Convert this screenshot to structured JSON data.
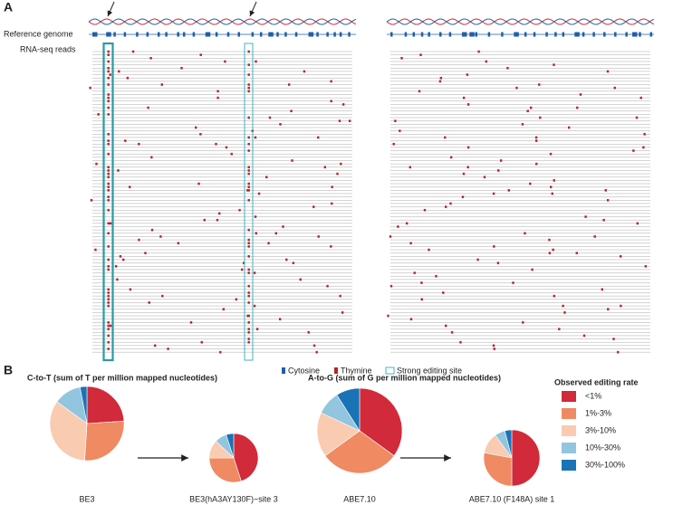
{
  "panel_a": {
    "label": "A",
    "reference_genome": "Reference genome",
    "reads": "RNA-seq reads",
    "legend": [
      {
        "name": "Cytosine",
        "color": "#1f5fa8"
      },
      {
        "name": "Thymine",
        "color": "#b5232e"
      },
      {
        "name": "Strong editing site",
        "color": "#3fb6c0"
      }
    ]
  },
  "panel_b": {
    "label": "B",
    "legend_title": "Observed editing rate"
  },
  "chart_data": [
    {
      "type": "pie",
      "title": "C-to-T (sum of T per million mapped nucleotides)",
      "name": "BE3",
      "categories": [
        "<1%",
        "1%-3%",
        "3%-10%",
        "10%-30%",
        "30%-100%"
      ],
      "colors": [
        "#d12a3a",
        "#ef8a62",
        "#f9cbb1",
        "#92c5de",
        "#1a73b5"
      ],
      "values": [
        24,
        27,
        34,
        12,
        3
      ]
    },
    {
      "type": "pie",
      "name": "BE3(hA3AY130F)−site 3",
      "categories": [
        "<1%",
        "1%-3%",
        "3%-10%",
        "10%-30%",
        "30%-100%"
      ],
      "colors": [
        "#d12a3a",
        "#ef8a62",
        "#f9cbb1",
        "#92c5de",
        "#1a73b5"
      ],
      "values": [
        45,
        30,
        12,
        8,
        5
      ]
    },
    {
      "type": "pie",
      "title": "A-to-G (sum of G per million mapped nucleotides)",
      "name": "ABE7.10",
      "categories": [
        "<1%",
        "1%-3%",
        "3%-10%",
        "10%-30%",
        "30%-100%"
      ],
      "colors": [
        "#d12a3a",
        "#ef8a62",
        "#f9cbb1",
        "#92c5de",
        "#1a73b5"
      ],
      "values": [
        35,
        30,
        17,
        9,
        9
      ]
    },
    {
      "type": "pie",
      "name": "ABE7.10 (F148A) site 1",
      "categories": [
        "<1%",
        "1%-3%",
        "3%-10%",
        "10%-30%",
        "30%-100%"
      ],
      "colors": [
        "#d12a3a",
        "#ef8a62",
        "#f9cbb1",
        "#92c5de",
        "#1a73b5"
      ],
      "values": [
        50,
        28,
        12,
        6,
        4
      ]
    }
  ]
}
